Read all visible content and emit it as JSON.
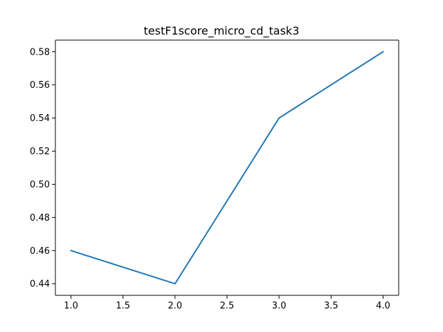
{
  "chart_data": {
    "type": "line",
    "title": "testF1score_micro_cd_task3",
    "xlabel": "",
    "ylabel": "",
    "x": [
      1.0,
      2.0,
      3.0,
      4.0
    ],
    "series": [
      {
        "values": [
          0.46,
          0.44,
          0.54,
          0.58
        ],
        "color": "#1f77b4"
      }
    ],
    "xlim": [
      0.85,
      4.15
    ],
    "ylim": [
      0.433,
      0.587
    ],
    "xticks": [
      1.0,
      1.5,
      2.0,
      2.5,
      3.0,
      3.5,
      4.0
    ],
    "xtick_labels": [
      "1.0",
      "1.5",
      "2.0",
      "2.5",
      "3.0",
      "3.5",
      "4.0"
    ],
    "yticks": [
      0.44,
      0.46,
      0.48,
      0.5,
      0.52,
      0.54,
      0.56,
      0.58
    ],
    "ytick_labels": [
      "0.44",
      "0.46",
      "0.48",
      "0.50",
      "0.52",
      "0.54",
      "0.56",
      "0.58"
    ],
    "grid": false,
    "legend": false
  }
}
